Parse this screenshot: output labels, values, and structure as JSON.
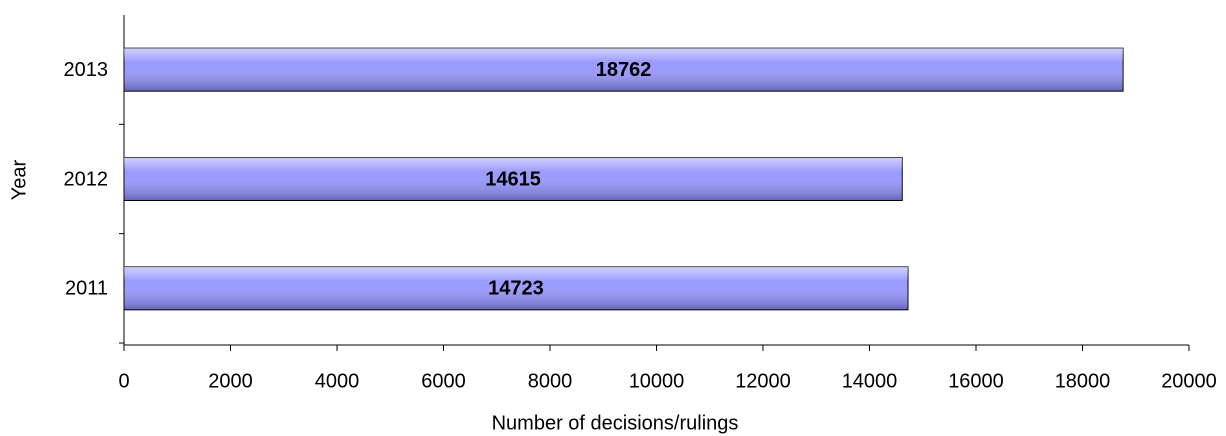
{
  "chart_data": {
    "type": "bar",
    "orientation": "horizontal",
    "xlabel": "Number of decisions/rulings",
    "ylabel": "Year",
    "categories": [
      "2011",
      "2012",
      "2013"
    ],
    "values": [
      14723,
      14615,
      18762
    ],
    "color": "#9999ff",
    "xlim": [
      0,
      20000
    ],
    "xticks": [
      0,
      2000,
      4000,
      6000,
      8000,
      10000,
      12000,
      14000,
      16000,
      18000,
      20000
    ],
    "grid": false
  }
}
